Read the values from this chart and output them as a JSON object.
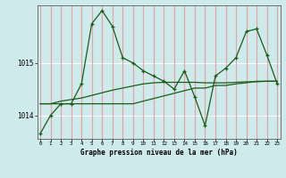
{
  "title": "Graphe pression niveau de la mer (hPa)",
  "bg_color": "#ceeaea",
  "vgrid_color": "#e8a0a0",
  "hgrid_color": "#ffffff",
  "line_color": "#1a5c1a",
  "x_labels": [
    "0",
    "1",
    "2",
    "3",
    "4",
    "5",
    "6",
    "7",
    "8",
    "9",
    "10",
    "11",
    "12",
    "13",
    "14",
    "15",
    "16",
    "17",
    "18",
    "19",
    "20",
    "21",
    "22",
    "23"
  ],
  "yticks": [
    1014,
    1015
  ],
  "ylim": [
    1013.55,
    1016.1
  ],
  "xlim": [
    -0.3,
    23.3
  ],
  "figsize": [
    3.2,
    2.0
  ],
  "dpi": 100,
  "series1": [
    1013.65,
    1014.0,
    1014.22,
    1014.22,
    1014.6,
    1015.75,
    1016.0,
    1015.7,
    1015.1,
    1015.0,
    1014.85,
    1014.75,
    1014.65,
    1014.5,
    1014.85,
    1014.35,
    1013.8,
    1014.75,
    1014.9,
    1015.1,
    1015.6,
    1015.65,
    1015.15,
    1014.6
  ],
  "series2": [
    1014.22,
    1014.22,
    1014.22,
    1014.22,
    1014.22,
    1014.22,
    1014.22,
    1014.22,
    1014.22,
    1014.22,
    1014.27,
    1014.32,
    1014.37,
    1014.42,
    1014.47,
    1014.52,
    1014.52,
    1014.57,
    1014.57,
    1014.6,
    1014.62,
    1014.65,
    1014.65,
    1014.65
  ],
  "series3": [
    1014.22,
    1014.22,
    1014.27,
    1014.3,
    1014.33,
    1014.38,
    1014.43,
    1014.48,
    1014.52,
    1014.56,
    1014.6,
    1014.62,
    1014.63,
    1014.63,
    1014.63,
    1014.63,
    1014.62,
    1014.62,
    1014.62,
    1014.63,
    1014.64,
    1014.64,
    1014.65,
    1014.65
  ]
}
